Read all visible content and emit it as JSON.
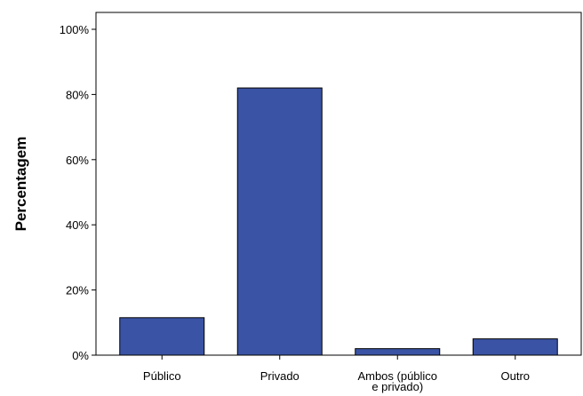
{
  "chart_data": {
    "type": "bar",
    "title": "",
    "xlabel": "",
    "ylabel": "Percentagem",
    "categories": [
      "Público",
      "Privado",
      "Ambos (público e privado)",
      "Outro"
    ],
    "category_label_lines": [
      [
        "Público"
      ],
      [
        "Privado"
      ],
      [
        "Ambos (público",
        "e privado)"
      ],
      [
        "Outro"
      ]
    ],
    "values": [
      11.5,
      82.0,
      2.0,
      5.0
    ],
    "ylim": [
      0,
      100
    ],
    "yticks": [
      0,
      20,
      40,
      60,
      80,
      100
    ],
    "ytick_labels": [
      "0%",
      "20%",
      "40%",
      "60%",
      "80%",
      "100%"
    ],
    "grid": false,
    "legend": "none",
    "bar_color": "#3a53a4",
    "bar_edge_color": "#000000"
  }
}
